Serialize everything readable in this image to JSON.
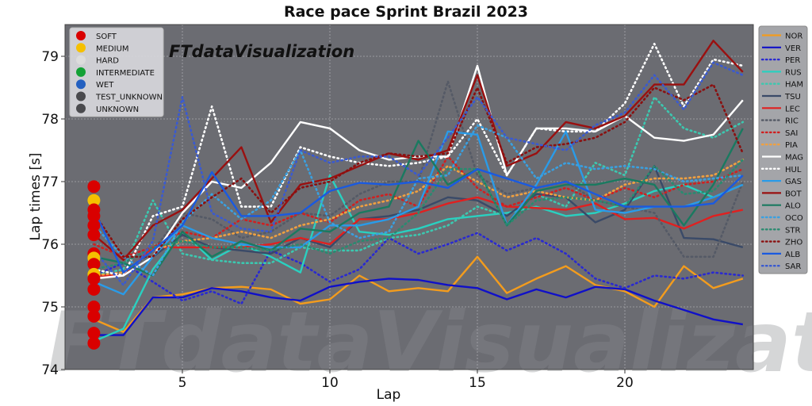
{
  "chart_data": {
    "type": "line",
    "title": "Race pace Sprint Brazil 2023",
    "xlabel": "Lap",
    "ylabel": "Lap times [s]",
    "xlim": [
      1,
      24.7
    ],
    "ylim": [
      74,
      79.5
    ],
    "xticks": [
      5,
      10,
      15,
      20
    ],
    "yticks": [
      74,
      75,
      76,
      77,
      78,
      79
    ],
    "grid": true,
    "watermark": "FTdataVisualization",
    "brand_label": "FTdataVisualization",
    "legend_position": "right outside",
    "compound_legend": [
      {
        "label": "SOFT",
        "color": "#d90000"
      },
      {
        "label": "MEDIUM",
        "color": "#f5c000"
      },
      {
        "label": "HARD",
        "color": "#dcdcdc"
      },
      {
        "label": "INTERMEDIATE",
        "color": "#13a135"
      },
      {
        "label": "WET",
        "color": "#2460c0"
      },
      {
        "label": "TEST_UNKNOWN",
        "color": "#4a4a4e"
      },
      {
        "label": "UNKNOWN",
        "color": "#4a4a4e"
      }
    ],
    "x": [
      2,
      3,
      4,
      5,
      6,
      7,
      8,
      9,
      10,
      11,
      12,
      13,
      14,
      15,
      16,
      17,
      18,
      19,
      20,
      21,
      22,
      23,
      24
    ],
    "lap2_markers": [
      {
        "value": 76.92,
        "compound": "SOFT"
      },
      {
        "value": 76.7,
        "compound": "MEDIUM"
      },
      {
        "value": 76.55,
        "compound": "SOFT"
      },
      {
        "value": 76.45,
        "compound": "SOFT"
      },
      {
        "value": 76.3,
        "compound": "SOFT"
      },
      {
        "value": 76.15,
        "compound": "SOFT"
      },
      {
        "value": 75.85,
        "compound": "SOFT"
      },
      {
        "value": 75.78,
        "compound": "MEDIUM"
      },
      {
        "value": 75.68,
        "compound": "SOFT"
      },
      {
        "value": 75.52,
        "compound": "MEDIUM"
      },
      {
        "value": 75.45,
        "compound": "SOFT"
      },
      {
        "value": 75.28,
        "compound": "SOFT"
      },
      {
        "value": 75.0,
        "compound": "SOFT"
      },
      {
        "value": 74.85,
        "compound": "SOFT"
      },
      {
        "value": 74.58,
        "compound": "SOFT"
      },
      {
        "value": 74.42,
        "compound": "SOFT"
      }
    ],
    "series": [
      {
        "name": "NOR",
        "color": "#f39c1d",
        "style": "solid",
        "values": [
          74.8,
          74.6,
          75.15,
          75.2,
          75.3,
          75.32,
          75.28,
          75.05,
          75.12,
          75.5,
          75.25,
          75.3,
          75.25,
          75.8,
          75.22,
          75.45,
          75.65,
          75.35,
          75.25,
          75.0,
          75.65,
          75.3,
          75.45
        ]
      },
      {
        "name": "VER",
        "color": "#1010c8",
        "style": "solid",
        "values": [
          74.55,
          74.55,
          75.15,
          75.15,
          75.3,
          75.25,
          75.15,
          75.1,
          75.32,
          75.4,
          75.45,
          75.43,
          75.35,
          75.3,
          75.12,
          75.28,
          75.15,
          75.32,
          75.28,
          75.1,
          74.95,
          74.8,
          74.72
        ]
      },
      {
        "name": "PER",
        "color": "#2a2ad0",
        "style": "dotted",
        "values": [
          75.5,
          75.7,
          75.4,
          75.1,
          75.25,
          75.05,
          75.9,
          75.7,
          75.4,
          75.6,
          76.1,
          75.85,
          76.0,
          76.18,
          75.9,
          76.1,
          75.85,
          75.45,
          75.3,
          75.5,
          75.45,
          75.55,
          75.5
        ]
      },
      {
        "name": "RUS",
        "color": "#2ad0c0",
        "style": "solid",
        "values": [
          74.45,
          74.65,
          75.6,
          76.2,
          75.75,
          76.0,
          75.8,
          75.55,
          77.1,
          76.2,
          76.15,
          76.25,
          76.4,
          76.45,
          76.5,
          76.6,
          76.45,
          76.5,
          76.65,
          76.85,
          76.95,
          76.75,
          76.95
        ]
      },
      {
        "name": "HAM",
        "color": "#3cc8b0",
        "style": "dotted",
        "values": [
          75.5,
          75.6,
          76.7,
          75.85,
          75.75,
          75.7,
          75.7,
          75.95,
          75.9,
          75.9,
          76.1,
          76.15,
          76.3,
          76.6,
          76.45,
          76.8,
          76.6,
          77.3,
          77.1,
          78.35,
          77.85,
          77.7,
          77.95
        ]
      },
      {
        "name": "TSU",
        "color": "#3a4a68",
        "style": "solid",
        "values": [
          75.5,
          75.5,
          75.8,
          76.15,
          75.95,
          75.9,
          75.85,
          76.1,
          75.95,
          76.4,
          76.45,
          76.55,
          76.75,
          76.7,
          76.45,
          76.8,
          76.75,
          76.35,
          76.55,
          77.25,
          76.1,
          76.08,
          75.95
        ]
      },
      {
        "name": "LEC",
        "color": "#e02020",
        "style": "solid",
        "values": [
          75.5,
          75.5,
          75.95,
          75.95,
          75.95,
          75.95,
          76.0,
          76.1,
          76.0,
          76.4,
          76.4,
          76.5,
          76.65,
          76.75,
          76.6,
          76.58,
          76.55,
          76.65,
          76.4,
          76.42,
          76.25,
          76.45,
          76.55
        ]
      },
      {
        "name": "RIC",
        "color": "#555a66",
        "style": "dotted",
        "values": [
          75.6,
          75.5,
          75.9,
          76.5,
          76.4,
          76.1,
          76.2,
          76.5,
          76.45,
          76.8,
          77.0,
          77.0,
          78.6,
          77.1,
          76.8,
          76.9,
          77.0,
          76.7,
          76.6,
          76.5,
          75.8,
          75.8,
          77.0
        ]
      },
      {
        "name": "SAI",
        "color": "#d02020",
        "style": "dotted",
        "values": [
          76.0,
          75.8,
          75.95,
          76.2,
          76.1,
          76.4,
          76.3,
          76.5,
          76.35,
          76.7,
          76.8,
          76.6,
          77.4,
          76.9,
          76.6,
          76.75,
          76.9,
          76.7,
          76.9,
          76.75,
          76.95,
          77.0,
          77.2
        ]
      },
      {
        "name": "PIA",
        "color": "#f0a040",
        "style": "dotted",
        "values": [
          75.5,
          75.55,
          75.9,
          76.05,
          76.1,
          76.2,
          76.1,
          76.3,
          76.4,
          76.6,
          76.7,
          76.85,
          77.25,
          77.0,
          76.75,
          76.85,
          76.75,
          76.7,
          76.95,
          77.05,
          77.05,
          77.1,
          77.35
        ]
      },
      {
        "name": "MAG",
        "color": "#ffffff",
        "style": "solid",
        "values": [
          75.45,
          75.5,
          75.8,
          76.5,
          77.0,
          76.9,
          77.3,
          77.95,
          77.85,
          77.5,
          77.35,
          77.4,
          77.4,
          78.85,
          77.1,
          77.85,
          77.85,
          77.8,
          78.05,
          77.7,
          77.65,
          77.75,
          78.3
        ]
      },
      {
        "name": "HUL",
        "color": "#ffffff",
        "style": "dotted",
        "values": [
          75.6,
          75.5,
          76.45,
          76.6,
          78.2,
          76.6,
          76.6,
          77.55,
          77.4,
          77.3,
          77.25,
          77.3,
          77.4,
          78.0,
          77.1,
          77.85,
          77.8,
          77.8,
          78.25,
          79.2,
          78.2,
          78.95,
          78.85
        ]
      },
      {
        "name": "GAS",
        "color": "#2a9be8",
        "style": "solid",
        "values": [
          75.4,
          75.2,
          75.8,
          76.3,
          76.1,
          76.0,
          75.95,
          75.95,
          76.3,
          76.3,
          76.4,
          76.6,
          77.8,
          77.75,
          76.3,
          76.95,
          77.8,
          76.55,
          76.5,
          76.6,
          76.6,
          76.75,
          76.95
        ]
      },
      {
        "name": "BOT",
        "color": "#9a1010",
        "style": "solid",
        "values": [
          76.15,
          75.75,
          76.3,
          76.55,
          77.05,
          77.55,
          76.35,
          76.95,
          77.05,
          77.25,
          77.45,
          77.35,
          77.5,
          78.7,
          77.25,
          77.45,
          77.95,
          77.85,
          78.05,
          78.55,
          78.55,
          79.25,
          78.75
        ]
      },
      {
        "name": "ALO",
        "color": "#1a7a60",
        "style": "solid",
        "values": [
          75.8,
          75.7,
          75.5,
          76.2,
          75.8,
          76.05,
          75.9,
          76.25,
          76.2,
          76.5,
          76.6,
          77.65,
          76.95,
          77.2,
          76.3,
          76.85,
          76.95,
          76.95,
          77.05,
          76.95,
          76.3,
          76.95,
          77.85
        ]
      },
      {
        "name": "OCO",
        "color": "#3aa0e0",
        "style": "dotted",
        "values": [
          76.3,
          75.8,
          75.5,
          76.35,
          76.8,
          76.4,
          76.7,
          77.5,
          76.35,
          76.1,
          76.2,
          77.05,
          77.1,
          77.9,
          77.7,
          77.05,
          77.3,
          77.2,
          77.25,
          77.2,
          77.0,
          77.05,
          77.1
        ]
      },
      {
        "name": "STR",
        "color": "#2a8a70",
        "style": "dotted",
        "values": [
          75.6,
          75.7,
          75.95,
          76.05,
          75.95,
          75.95,
          75.9,
          76.0,
          75.85,
          76.05,
          76.1,
          76.5,
          77.2,
          77.2,
          76.3,
          76.7,
          76.75,
          76.7,
          76.6,
          77.25,
          76.8,
          76.85,
          77.35
        ]
      },
      {
        "name": "ZHO",
        "color": "#8a1010",
        "style": "dotted",
        "values": [
          76.5,
          75.8,
          75.8,
          76.4,
          76.75,
          77.05,
          76.5,
          76.9,
          77.0,
          77.3,
          77.45,
          77.4,
          77.45,
          78.5,
          77.3,
          77.55,
          77.6,
          77.7,
          77.95,
          78.5,
          78.3,
          78.55,
          77.45
        ]
      },
      {
        "name": "ALB",
        "color": "#1a5ae0",
        "style": "solid",
        "values": [
          76.55,
          75.55,
          75.9,
          76.3,
          77.15,
          76.45,
          76.45,
          76.5,
          76.85,
          76.98,
          76.95,
          77.0,
          76.9,
          77.2,
          77.05,
          76.9,
          77.0,
          76.8,
          76.6,
          76.6,
          76.6,
          76.65,
          77.1
        ]
      },
      {
        "name": "SAR",
        "color": "#3a5ad0",
        "style": "dotted",
        "values": [
          75.9,
          75.35,
          76.05,
          78.35,
          76.5,
          76.25,
          76.2,
          77.5,
          77.3,
          77.4,
          77.4,
          77.1,
          77.7,
          78.35,
          77.7,
          77.6,
          77.5,
          77.9,
          78.1,
          78.7,
          78.15,
          78.9,
          78.7
        ]
      }
    ]
  }
}
